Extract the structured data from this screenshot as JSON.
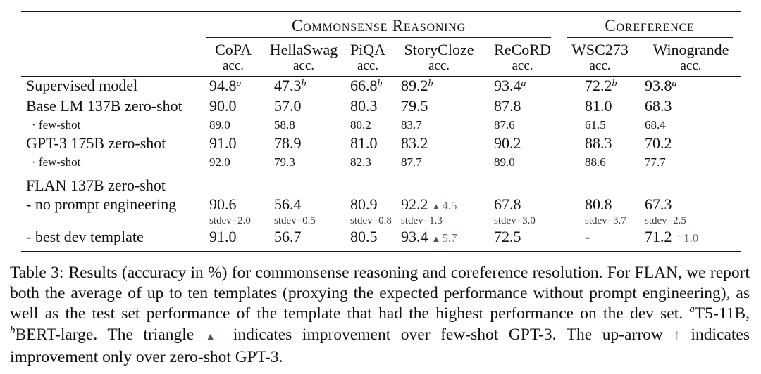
{
  "page": {
    "background": "#ffffff",
    "text_color": "#111111"
  },
  "colors": {
    "rule_color": "#141414",
    "triangle_green": "#3c624a",
    "delta_value_green": "#5f7a6b",
    "arrow_green": "#8e9d94",
    "stdev_gray": "#3b3b3b"
  },
  "table": {
    "groups": [
      {
        "label": "Commonsense Reasoning",
        "span": 5
      },
      {
        "label": "Coreference",
        "span": 2
      }
    ],
    "columns": [
      {
        "name": "CoPA",
        "sub": "acc."
      },
      {
        "name": "HellaSwag",
        "sub": "acc."
      },
      {
        "name": "PiQA",
        "sub": "acc."
      },
      {
        "name": "StoryCloze",
        "sub": "acc."
      },
      {
        "name": "ReCoRD",
        "sub": "acc."
      },
      {
        "name": "WSC273",
        "sub": "acc."
      },
      {
        "name": "Winogrande",
        "sub": "acc."
      }
    ],
    "sections": [
      {
        "name": "baselines",
        "rows": [
          {
            "label": "Supervised model",
            "style": "normal",
            "cells": [
              {
                "main": "94.8",
                "sup": "a"
              },
              {
                "main": "47.3",
                "sup": "b"
              },
              {
                "main": "66.8",
                "sup": "b"
              },
              {
                "main": "89.2",
                "sup": "b"
              },
              {
                "main": "93.4",
                "sup": "a"
              },
              {
                "main": "72.2",
                "sup": "b"
              },
              {
                "main": "93.8",
                "sup": "a"
              }
            ]
          },
          {
            "label": "Base LM 137B zero-shot",
            "style": "normal",
            "cells": [
              {
                "main": "90.0"
              },
              {
                "main": "57.0"
              },
              {
                "main": "80.3"
              },
              {
                "main": "79.5"
              },
              {
                "main": "87.8"
              },
              {
                "main": "81.0"
              },
              {
                "main": "68.3"
              }
            ]
          },
          {
            "label": "· few-shot",
            "style": "small",
            "cells": [
              {
                "main": "89.0"
              },
              {
                "main": "58.8"
              },
              {
                "main": "80.2"
              },
              {
                "main": "83.7"
              },
              {
                "main": "87.6"
              },
              {
                "main": "61.5"
              },
              {
                "main": "68.4"
              }
            ]
          },
          {
            "label": "GPT-3 175B zero-shot",
            "style": "normal",
            "cells": [
              {
                "main": "91.0"
              },
              {
                "main": "78.9"
              },
              {
                "main": "81.0"
              },
              {
                "main": "83.2"
              },
              {
                "main": "90.2"
              },
              {
                "main": "88.3"
              },
              {
                "main": "70.2"
              }
            ]
          },
          {
            "label": "· few-shot",
            "style": "small",
            "cells": [
              {
                "main": "92.0"
              },
              {
                "main": "79.3"
              },
              {
                "main": "82.3"
              },
              {
                "main": "87.7"
              },
              {
                "main": "89.0"
              },
              {
                "main": "88.6"
              },
              {
                "main": "77.7"
              }
            ]
          }
        ]
      },
      {
        "name": "flan",
        "rows": [
          {
            "label": "FLAN 137B zero-shot",
            "style": "flan-head",
            "cells": [
              null,
              null,
              null,
              null,
              null,
              null,
              null
            ]
          },
          {
            "label": "- no prompt engineering",
            "style": "stdev",
            "cells": [
              {
                "main": "90.6",
                "stdev": "stdev=2.0"
              },
              {
                "main": "56.4",
                "stdev": "stdev=0.5"
              },
              {
                "main": "80.9",
                "stdev": "stdev=0.8"
              },
              {
                "main": "92.2",
                "delta": {
                  "symbol": "▲",
                  "value": "4.5"
                },
                "stdev": "stdev=1.3"
              },
              {
                "main": "67.8",
                "stdev": "stdev=3.0"
              },
              {
                "main": "80.8",
                "stdev": "stdev=3.7"
              },
              {
                "main": "67.3",
                "stdev": "stdev=2.5"
              }
            ]
          },
          {
            "label": "- best dev template",
            "style": "best",
            "cells": [
              {
                "main": "91.0"
              },
              {
                "main": "56.7"
              },
              {
                "main": "80.5"
              },
              {
                "main": "93.4",
                "delta": {
                  "symbol": "▲",
                  "value": "5.7"
                }
              },
              {
                "main": "72.5"
              },
              {
                "main": "-"
              },
              {
                "main": "71.2",
                "delta": {
                  "symbol": "↑",
                  "value": "1.0"
                }
              }
            ]
          }
        ]
      }
    ]
  },
  "caption": {
    "segments": [
      {
        "text": "Table 3:",
        "style": "label"
      },
      {
        "text": "Results (accuracy in %) for commonsense reasoning and coreference resolution. For FLAN, we report both the average of up to ten templates (proxying the expected performance without prompt engineering), as well as the test set performance of the template that had the highest performance on the dev set. "
      },
      {
        "text": "a",
        "style": "sup"
      },
      {
        "text": "T5-11B, "
      },
      {
        "text": "b",
        "style": "sup"
      },
      {
        "text": "BERT-large. The triangle "
      },
      {
        "text": "▲",
        "style": "triangle"
      },
      {
        "text": " indicates improvement over few-shot GPT-3. The up-arrow "
      },
      {
        "text": "↑",
        "style": "arrow"
      },
      {
        "text": " indicates improvement only over zero-shot GPT-3."
      }
    ]
  }
}
